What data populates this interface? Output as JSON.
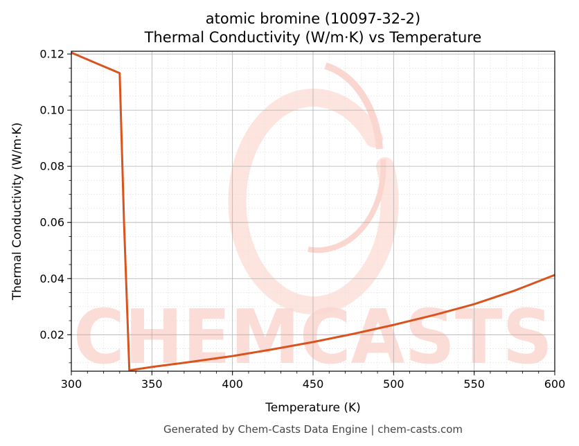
{
  "chart_data": {
    "type": "line",
    "title": "atomic bromine (10097-32-2)",
    "subtitle": "Thermal Conductivity (W/m·K) vs Temperature",
    "xlabel": "Temperature (K)",
    "ylabel": "Thermal Conductivity (W/m·K)",
    "xlim": [
      300,
      600
    ],
    "ylim": [
      0.007,
      0.121
    ],
    "xticks": [
      300,
      350,
      400,
      450,
      500,
      550,
      600
    ],
    "yticks": [
      0.02,
      0.04,
      0.06,
      0.08,
      0.1,
      0.12
    ],
    "x_tick_labels": [
      "300",
      "350",
      "400",
      "450",
      "500",
      "550",
      "600"
    ],
    "y_tick_labels": [
      "0.02",
      "0.04",
      "0.06",
      "0.08",
      "0.10",
      "0.12"
    ],
    "grid": true,
    "line_color": "#d9531e",
    "series": [
      {
        "x": [
          300,
          330,
          332.7,
          336,
          350,
          375,
          400,
          425,
          450,
          475,
          500,
          525,
          550,
          575,
          600
        ],
        "y": [
          0.1205,
          0.1132,
          0.06,
          0.0073,
          0.0085,
          0.0104,
          0.0124,
          0.0148,
          0.0174,
          0.0203,
          0.0235,
          0.027,
          0.0309,
          0.0357,
          0.0413
        ]
      }
    ]
  },
  "watermark": {
    "text": "CHEMCASTS",
    "color": "#fbd6cf"
  },
  "footer": "Generated by Chem-Casts Data Engine | chem-casts.com"
}
